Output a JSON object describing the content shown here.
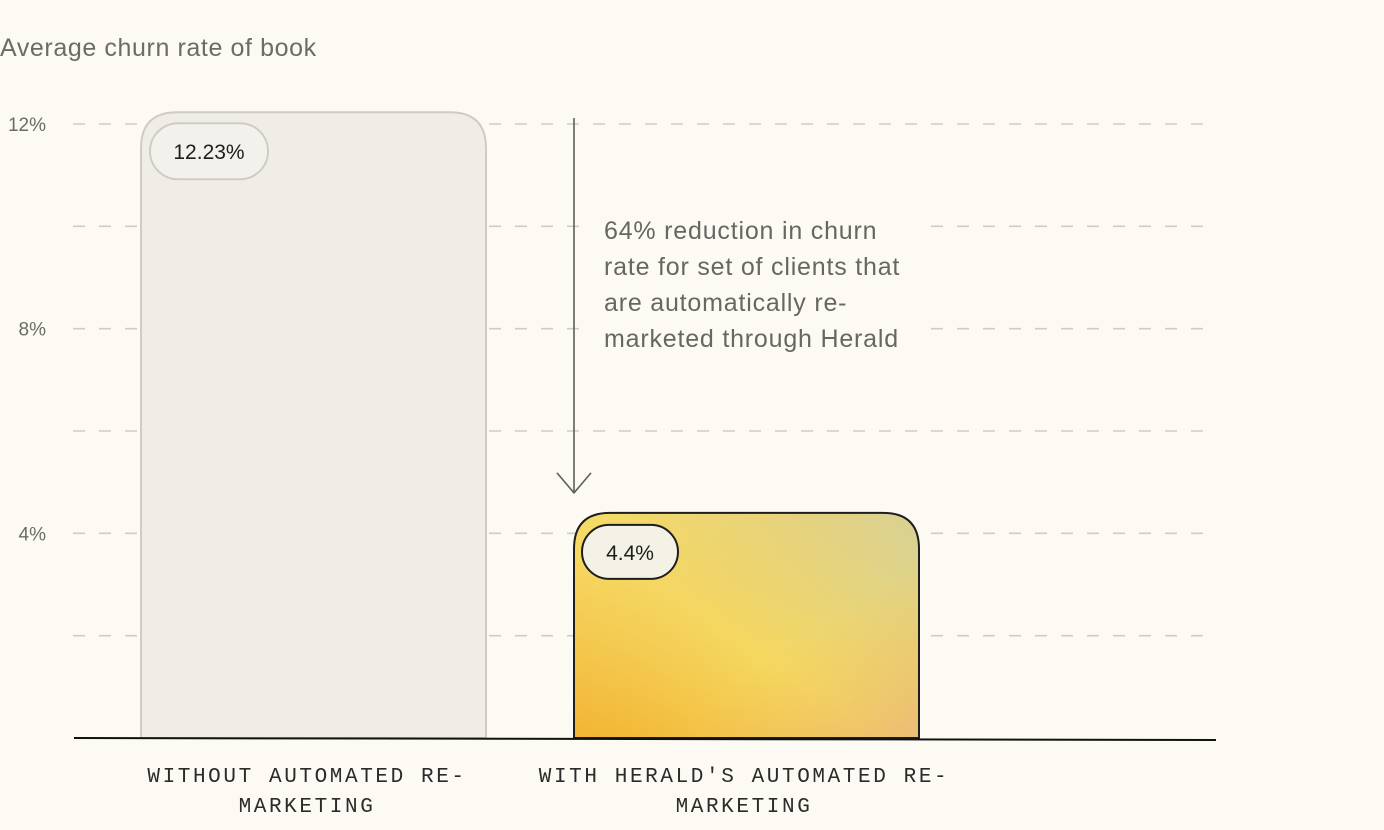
{
  "chart_data": {
    "type": "bar",
    "title": "Average churn rate of book",
    "categories": [
      "WITHOUT AUTOMATED RE-MARKETING",
      "WITH HERALD'S AUTOMATED RE-MARKETING"
    ],
    "values": [
      12.23,
      4.4
    ],
    "value_labels": [
      "12.23%",
      "4.4%"
    ],
    "ylim": [
      0,
      12
    ],
    "yticks": [
      12,
      8,
      4
    ],
    "ytick_labels": [
      "12%",
      "8%",
      "4%"
    ],
    "grid": true,
    "grid_step": 2,
    "annotation": "64% reduction in churn rate for set of clients that are automatically re-marketed through Herald",
    "colors": {
      "bar_1_fill": "#f0ede6",
      "bar_1_stroke": "#cfccc5",
      "bar_2_gradient": [
        "#f3b636",
        "#f6df6c",
        "#cfd3a2",
        "#ecbf80"
      ],
      "grid": "#cfccc5",
      "background": "#fdfaf3"
    }
  }
}
